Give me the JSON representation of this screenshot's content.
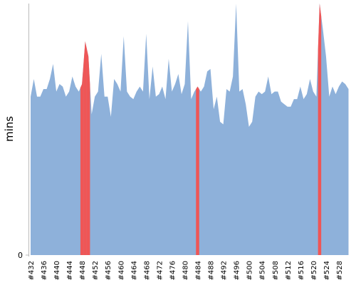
{
  "chart_data": {
    "type": "area",
    "y_label": "mins",
    "categories": [
      "#432",
      null,
      null,
      null,
      "#436",
      null,
      null,
      null,
      "#440",
      null,
      null,
      null,
      "#444",
      null,
      null,
      null,
      "#448",
      null,
      null,
      null,
      "#452",
      null,
      null,
      null,
      "#456",
      null,
      null,
      null,
      "#460",
      null,
      null,
      null,
      "#464",
      null,
      null,
      null,
      "#468",
      null,
      null,
      null,
      "#472",
      null,
      null,
      null,
      "#476",
      null,
      null,
      null,
      "#480",
      null,
      null,
      null,
      "#484",
      null,
      null,
      null,
      "#488",
      null,
      null,
      null,
      "#492",
      null,
      null,
      null,
      "#496",
      null,
      null,
      null,
      "#500",
      null,
      null,
      null,
      "#504",
      null,
      null,
      null,
      "#508",
      null,
      null,
      null,
      "#512",
      null,
      null,
      null,
      "#516",
      null,
      null,
      null,
      "#520",
      null,
      null,
      null,
      "#524",
      null,
      null,
      null,
      "#528",
      null,
      null,
      null
    ],
    "series": [
      {
        "color": "#8eb1da",
        "values": [
          63,
          70,
          63,
          63,
          66,
          66,
          70,
          76,
          65,
          68,
          67,
          63,
          65,
          71,
          67,
          65,
          68,
          85,
          79,
          56,
          63,
          65,
          80,
          63,
          63,
          55,
          70,
          68,
          65,
          87,
          65,
          63,
          62,
          65,
          67,
          65,
          88,
          62,
          75,
          63,
          64,
          67,
          62,
          78,
          65,
          68,
          72,
          64,
          68,
          93,
          62,
          65,
          67,
          65,
          67,
          73,
          74,
          58,
          63,
          53,
          52,
          66,
          65,
          71,
          100,
          65,
          66,
          60,
          51,
          53,
          63,
          65,
          64,
          65,
          71,
          64,
          65,
          65,
          61,
          60,
          59,
          59,
          62,
          62,
          67,
          62,
          64,
          70,
          65,
          63,
          100,
          90,
          79,
          63,
          67,
          64,
          67,
          69,
          68,
          66
        ]
      }
    ],
    "highlight": {
      "color": "#ef5656",
      "indices": [
        16,
        17,
        18,
        52,
        90
      ]
    },
    "ylim": [
      0,
      100
    ],
    "yticks": [
      0
    ]
  }
}
